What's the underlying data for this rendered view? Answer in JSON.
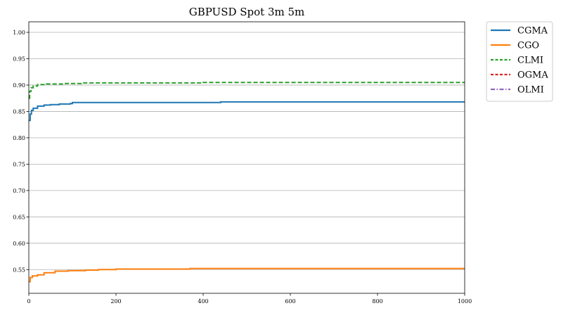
{
  "chart_data": {
    "type": "line",
    "title": "GBPUSD Spot 3m 5m",
    "xlabel": "",
    "ylabel": "",
    "xlim": [
      0,
      1000
    ],
    "ylim": [
      0.505,
      1.02
    ],
    "x_ticks": [
      0,
      200,
      400,
      600,
      800,
      1000
    ],
    "y_ticks": [
      0.55,
      0.6,
      0.65,
      0.7,
      0.75,
      0.8,
      0.85,
      0.9,
      0.95,
      1.0
    ],
    "grid": "horizontal",
    "legend_position": "outside-top-right",
    "series": [
      {
        "name": "CGMA",
        "color": "#1f77b4",
        "style": "solid",
        "x": [
          0,
          3,
          6,
          10,
          20,
          35,
          50,
          70,
          95,
          100,
          300,
          440,
          600,
          800,
          1000
        ],
        "y": [
          0.833,
          0.845,
          0.852,
          0.856,
          0.86,
          0.862,
          0.863,
          0.864,
          0.865,
          0.867,
          0.867,
          0.868,
          0.868,
          0.868,
          0.868
        ]
      },
      {
        "name": "CGO",
        "color": "#ff7f0e",
        "style": "solid",
        "x": [
          0,
          3,
          8,
          20,
          35,
          60,
          90,
          130,
          160,
          200,
          260,
          370,
          600,
          800,
          1000
        ],
        "y": [
          0.527,
          0.535,
          0.538,
          0.54,
          0.544,
          0.547,
          0.548,
          0.549,
          0.55,
          0.551,
          0.551,
          0.552,
          0.552,
          0.552,
          0.552
        ]
      },
      {
        "name": "CLMI",
        "color": "#2ca02c",
        "style": "dashed",
        "x": [
          0,
          2,
          5,
          10,
          20,
          40,
          80,
          120,
          200,
          400,
          600,
          800,
          1000
        ],
        "y": [
          0.875,
          0.888,
          0.895,
          0.898,
          0.901,
          0.902,
          0.903,
          0.904,
          0.904,
          0.905,
          0.905,
          0.905,
          0.905
        ]
      },
      {
        "name": "OGMA",
        "color": "#d62728",
        "style": "dashed",
        "x": [],
        "y": []
      },
      {
        "name": "OLMI",
        "color": "#9467bd",
        "style": "dashdot",
        "x": [],
        "y": []
      }
    ]
  }
}
